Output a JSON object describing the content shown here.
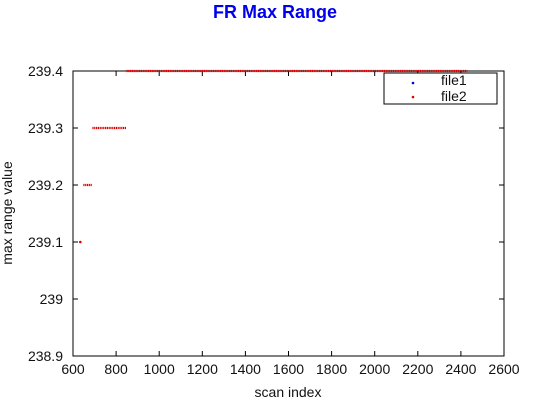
{
  "chart_data": {
    "type": "scatter",
    "title": "FR Max Range",
    "xlabel": "scan index",
    "ylabel": "max range value",
    "xlim": [
      600,
      2600
    ],
    "ylim": [
      238.9,
      239.4
    ],
    "x_ticks": [
      600,
      800,
      1000,
      1200,
      1400,
      1600,
      1800,
      2000,
      2200,
      2400,
      2600
    ],
    "y_ticks": [
      238.9,
      239,
      239.1,
      239.2,
      239.3,
      239.4
    ],
    "y_tick_labels": [
      "238.9",
      "239",
      "239.1",
      "239.2",
      "239.3",
      "239.4"
    ],
    "grid": false,
    "legend_position": "top-right",
    "series": [
      {
        "name": "file1",
        "color": "#0000cc",
        "marker": "dot",
        "segments": []
      },
      {
        "name": "file2",
        "color": "#dd0000",
        "marker": "dot",
        "segments": [
          {
            "x_start": 632,
            "x_end": 636,
            "y": 239.1
          },
          {
            "x_start": 648,
            "x_end": 690,
            "y": 239.2
          },
          {
            "x_start": 690,
            "x_end": 848,
            "y": 239.3
          },
          {
            "x_start": 848,
            "x_end": 2430,
            "y": 239.4
          }
        ]
      }
    ]
  }
}
